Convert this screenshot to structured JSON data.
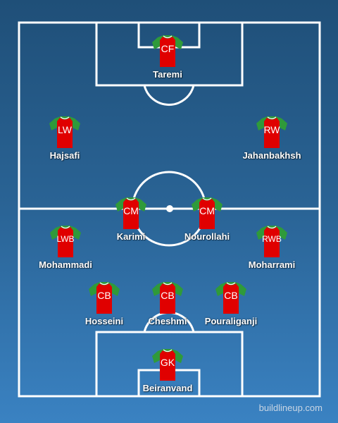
{
  "colors": {
    "shirt_body": "#e00000",
    "shirt_trim": "#2f9a3a",
    "pitch_lines": "#ffffff"
  },
  "players": [
    {
      "id": "cf",
      "position": "CF",
      "name": "Taremi"
    },
    {
      "id": "lw",
      "position": "LW",
      "name": "Hajsafi"
    },
    {
      "id": "rw",
      "position": "RW",
      "name": "Jahanbakhsh"
    },
    {
      "id": "cm-left",
      "position": "CM",
      "name": "Karimi"
    },
    {
      "id": "cm-right",
      "position": "CM",
      "name": "Nourollahi"
    },
    {
      "id": "lwb",
      "position": "LWB",
      "name": "Mohammadi"
    },
    {
      "id": "rwb",
      "position": "RWB",
      "name": "Moharrami"
    },
    {
      "id": "cb-left",
      "position": "CB",
      "name": "Hosseini"
    },
    {
      "id": "cb-center",
      "position": "CB",
      "name": "Cheshmi"
    },
    {
      "id": "cb-right",
      "position": "CB",
      "name": "Pouraliganji"
    },
    {
      "id": "gk",
      "position": "GK",
      "name": "Beiranvand"
    }
  ],
  "watermark": "buildlineup.com"
}
